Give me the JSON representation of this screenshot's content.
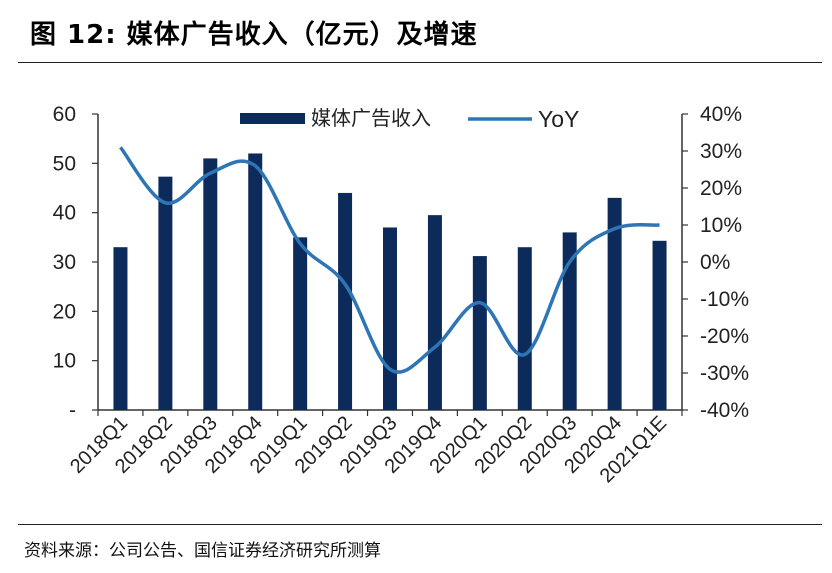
{
  "header": {
    "title": "图 12:  媒体广告收入（亿元）及增速"
  },
  "footer": {
    "source": "资料来源：公司公告、国信证券经济研究所测算"
  },
  "colors": {
    "bar": "#0D2B5A",
    "line": "#2E75B6",
    "axis": "#333333",
    "text": "#222222"
  },
  "chart_data": {
    "type": "bar",
    "title": "媒体广告收入（亿元）及增速",
    "categories": [
      "2018Q1",
      "2018Q2",
      "2018Q3",
      "2018Q4",
      "2019Q1",
      "2019Q2",
      "2019Q3",
      "2019Q4",
      "2020Q1",
      "2020Q2",
      "2020Q3",
      "2020Q4",
      "2021Q1E"
    ],
    "series": [
      {
        "name": "媒体广告收入",
        "type": "bar",
        "axis": "left",
        "values": [
          33,
          47.3,
          51,
          52,
          35,
          44,
          37,
          39.5,
          31.2,
          33,
          36,
          43,
          34.3
        ]
      },
      {
        "name": "YoY",
        "type": "line",
        "axis": "right",
        "values": [
          31,
          16,
          24,
          26,
          5,
          -6,
          -29,
          -23,
          -11,
          -25,
          0,
          9,
          10
        ]
      }
    ],
    "left_axis": {
      "min": 0,
      "max": 60,
      "ticks": [
        "-",
        "10",
        "20",
        "30",
        "40",
        "50",
        "60"
      ]
    },
    "right_axis": {
      "min": -40,
      "max": 40,
      "ticks": [
        "-40%",
        "-30%",
        "-20%",
        "-10%",
        "0%",
        "10%",
        "20%",
        "30%",
        "40%"
      ]
    },
    "legend": [
      {
        "label": "媒体广告收入",
        "kind": "bar"
      },
      {
        "label": "YoY",
        "kind": "line"
      }
    ],
    "legend_position": "top-center"
  }
}
